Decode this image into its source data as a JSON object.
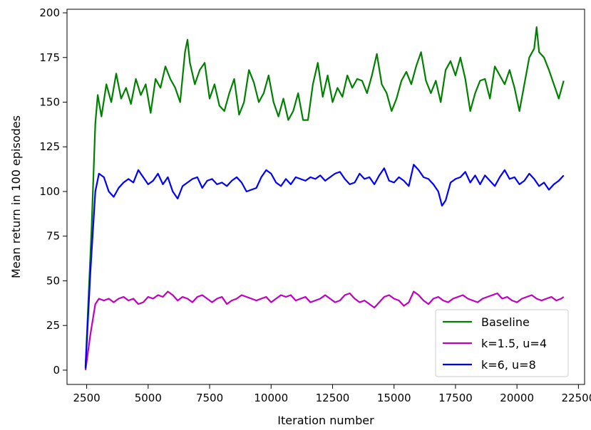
{
  "chart_data": {
    "type": "line",
    "title": "",
    "xlabel": "Iteration number",
    "ylabel": "Mean return in 100 episodes",
    "xlim": [
      1700,
      22750
    ],
    "ylim": [
      -8,
      202
    ],
    "xticks": [
      2500,
      5000,
      7500,
      10000,
      12500,
      15000,
      17500,
      20000,
      22500
    ],
    "yticks": [
      0,
      25,
      50,
      75,
      100,
      125,
      150,
      175,
      200
    ],
    "grid": false,
    "legend_position": "lower right",
    "series": [
      {
        "name": "Baseline",
        "color": "#008000",
        "x": [
          2450,
          2700,
          2850,
          2950,
          3100,
          3300,
          3500,
          3700,
          3900,
          4100,
          4300,
          4500,
          4700,
          4900,
          5100,
          5300,
          5500,
          5700,
          5900,
          6100,
          6300,
          6500,
          6600,
          6700,
          6900,
          7100,
          7300,
          7500,
          7700,
          7900,
          8100,
          8300,
          8500,
          8700,
          8900,
          9100,
          9300,
          9500,
          9700,
          9900,
          10100,
          10300,
          10500,
          10700,
          10900,
          11100,
          11300,
          11500,
          11700,
          11900,
          12100,
          12300,
          12500,
          12700,
          12900,
          13100,
          13300,
          13500,
          13700,
          13900,
          14100,
          14300,
          14500,
          14700,
          14900,
          15100,
          15300,
          15500,
          15700,
          15900,
          16100,
          16300,
          16500,
          16700,
          16900,
          17100,
          17300,
          17500,
          17700,
          17900,
          18100,
          18300,
          18500,
          18700,
          18900,
          19100,
          19300,
          19500,
          19700,
          19900,
          20100,
          20300,
          20500,
          20700,
          20800,
          20900,
          21100,
          21300,
          21500,
          21700,
          21900
        ],
        "values": [
          2,
          80,
          138,
          154,
          142,
          160,
          150,
          166,
          152,
          158,
          149,
          163,
          154,
          160,
          144,
          163,
          158,
          170,
          163,
          158,
          150,
          178,
          185,
          172,
          160,
          168,
          172,
          152,
          160,
          148,
          145,
          155,
          163,
          143,
          150,
          168,
          161,
          150,
          155,
          165,
          150,
          142,
          152,
          140,
          145,
          155,
          140,
          140,
          160,
          172,
          153,
          165,
          150,
          158,
          153,
          165,
          158,
          163,
          162,
          155,
          165,
          177,
          160,
          155,
          145,
          152,
          162,
          167,
          160,
          170,
          178,
          162,
          155,
          162,
          150,
          168,
          173,
          165,
          175,
          163,
          145,
          155,
          162,
          163,
          152,
          170,
          165,
          160,
          168,
          158,
          145,
          160,
          175,
          180,
          192,
          178,
          175,
          168,
          160,
          152,
          162
        ]
      },
      {
        "name": "k=1.5, u=4",
        "color": "#bf00bf",
        "x": [
          2450,
          2650,
          2850,
          3000,
          3200,
          3400,
          3600,
          3800,
          4000,
          4200,
          4400,
          4600,
          4800,
          5000,
          5200,
          5400,
          5600,
          5800,
          6000,
          6200,
          6400,
          6600,
          6800,
          7000,
          7200,
          7400,
          7600,
          7800,
          8000,
          8200,
          8400,
          8600,
          8800,
          9000,
          9200,
          9400,
          9600,
          9800,
          10000,
          10200,
          10400,
          10600,
          10800,
          11000,
          11200,
          11400,
          11600,
          11800,
          12000,
          12200,
          12400,
          12600,
          12800,
          13000,
          13200,
          13400,
          13600,
          13800,
          14000,
          14200,
          14400,
          14600,
          14800,
          15000,
          15200,
          15400,
          15600,
          15800,
          16000,
          16200,
          16400,
          16600,
          16800,
          17000,
          17200,
          17400,
          17600,
          17800,
          18000,
          18200,
          18400,
          18600,
          18800,
          19000,
          19200,
          19400,
          19600,
          19800,
          20000,
          20200,
          20400,
          20600,
          20800,
          21000,
          21200,
          21400,
          21600,
          21800,
          21900
        ],
        "values": [
          0,
          20,
          37,
          40,
          39,
          40,
          38,
          40,
          41,
          39,
          40,
          37,
          38,
          41,
          40,
          42,
          41,
          44,
          42,
          39,
          41,
          40,
          38,
          41,
          42,
          40,
          38,
          40,
          41,
          37,
          39,
          40,
          42,
          41,
          40,
          39,
          40,
          41,
          38,
          40,
          42,
          41,
          42,
          39,
          40,
          41,
          38,
          39,
          40,
          42,
          40,
          38,
          39,
          42,
          43,
          40,
          38,
          39,
          37,
          35,
          38,
          41,
          42,
          40,
          39,
          36,
          38,
          44,
          42,
          39,
          37,
          40,
          41,
          39,
          38,
          40,
          41,
          42,
          40,
          39,
          38,
          40,
          41,
          42,
          43,
          40,
          41,
          39,
          38,
          40,
          41,
          42,
          40,
          39,
          40,
          41,
          39,
          40,
          41
        ]
      },
      {
        "name": "k=6, u=8",
        "color": "#0000ff",
        "x": [
          2450,
          2650,
          2850,
          3000,
          3200,
          3400,
          3600,
          3800,
          4000,
          4200,
          4400,
          4600,
          4800,
          5000,
          5200,
          5400,
          5600,
          5800,
          6000,
          6200,
          6400,
          6600,
          6800,
          7000,
          7200,
          7400,
          7600,
          7800,
          8000,
          8200,
          8400,
          8600,
          8800,
          9000,
          9200,
          9400,
          9600,
          9800,
          10000,
          10200,
          10400,
          10600,
          10800,
          11000,
          11200,
          11400,
          11600,
          11800,
          12000,
          12200,
          12400,
          12600,
          12800,
          13000,
          13200,
          13400,
          13600,
          13800,
          14000,
          14200,
          14400,
          14600,
          14800,
          15000,
          15200,
          15400,
          15600,
          15800,
          16000,
          16200,
          16400,
          16600,
          16800,
          16950,
          17100,
          17300,
          17500,
          17700,
          17900,
          18100,
          18300,
          18500,
          18700,
          18900,
          19100,
          19300,
          19500,
          19700,
          19900,
          20100,
          20300,
          20500,
          20700,
          20900,
          21100,
          21300,
          21500,
          21700,
          21900
        ],
        "values": [
          1,
          55,
          100,
          110,
          108,
          100,
          97,
          102,
          105,
          107,
          105,
          112,
          108,
          104,
          106,
          110,
          104,
          108,
          100,
          96,
          103,
          105,
          107,
          108,
          102,
          106,
          107,
          104,
          105,
          103,
          106,
          108,
          105,
          100,
          101,
          102,
          108,
          112,
          110,
          105,
          103,
          107,
          104,
          108,
          107,
          106,
          108,
          107,
          109,
          106,
          108,
          110,
          111,
          107,
          104,
          105,
          110,
          107,
          108,
          104,
          109,
          113,
          106,
          105,
          108,
          106,
          103,
          115,
          112,
          108,
          107,
          104,
          100,
          92,
          95,
          105,
          107,
          108,
          111,
          105,
          109,
          104,
          109,
          106,
          103,
          108,
          112,
          107,
          108,
          104,
          106,
          110,
          107,
          103,
          105,
          101,
          104,
          106,
          109
        ]
      }
    ]
  }
}
